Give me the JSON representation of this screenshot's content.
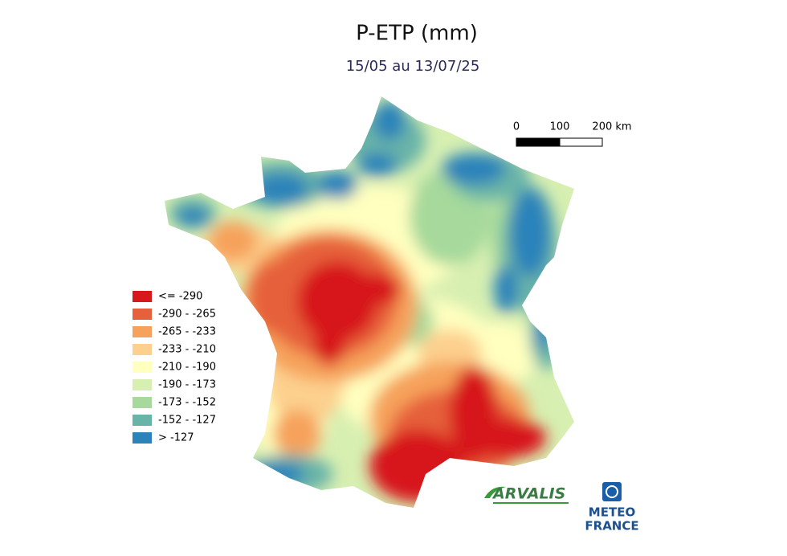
{
  "header": {
    "title": "P-ETP (mm)",
    "subtitle": "15/05 au 13/07/25"
  },
  "legend": {
    "items": [
      {
        "label": "<= -290",
        "color": "#d7191c"
      },
      {
        "label": "-290 - -265",
        "color": "#e6603b"
      },
      {
        "label": "-265 - -233",
        "color": "#f6a25c"
      },
      {
        "label": "-233 - -210",
        "color": "#fdd08e"
      },
      {
        "label": "-210 - -190",
        "color": "#ffffbf"
      },
      {
        "label": "-190 - -173",
        "color": "#d7efb1"
      },
      {
        "label": "-173 - -152",
        "color": "#a6d99b"
      },
      {
        "label": "-152 - -127",
        "color": "#69b4a8"
      },
      {
        "label": "> -127",
        "color": "#2c83ba"
      }
    ]
  },
  "scale_bar": {
    "labels": [
      "0",
      "100",
      "200 km"
    ]
  },
  "logos": {
    "arvalis": "ARVALIS",
    "meteo_france": [
      "METEO",
      "FRANCE"
    ]
  }
}
